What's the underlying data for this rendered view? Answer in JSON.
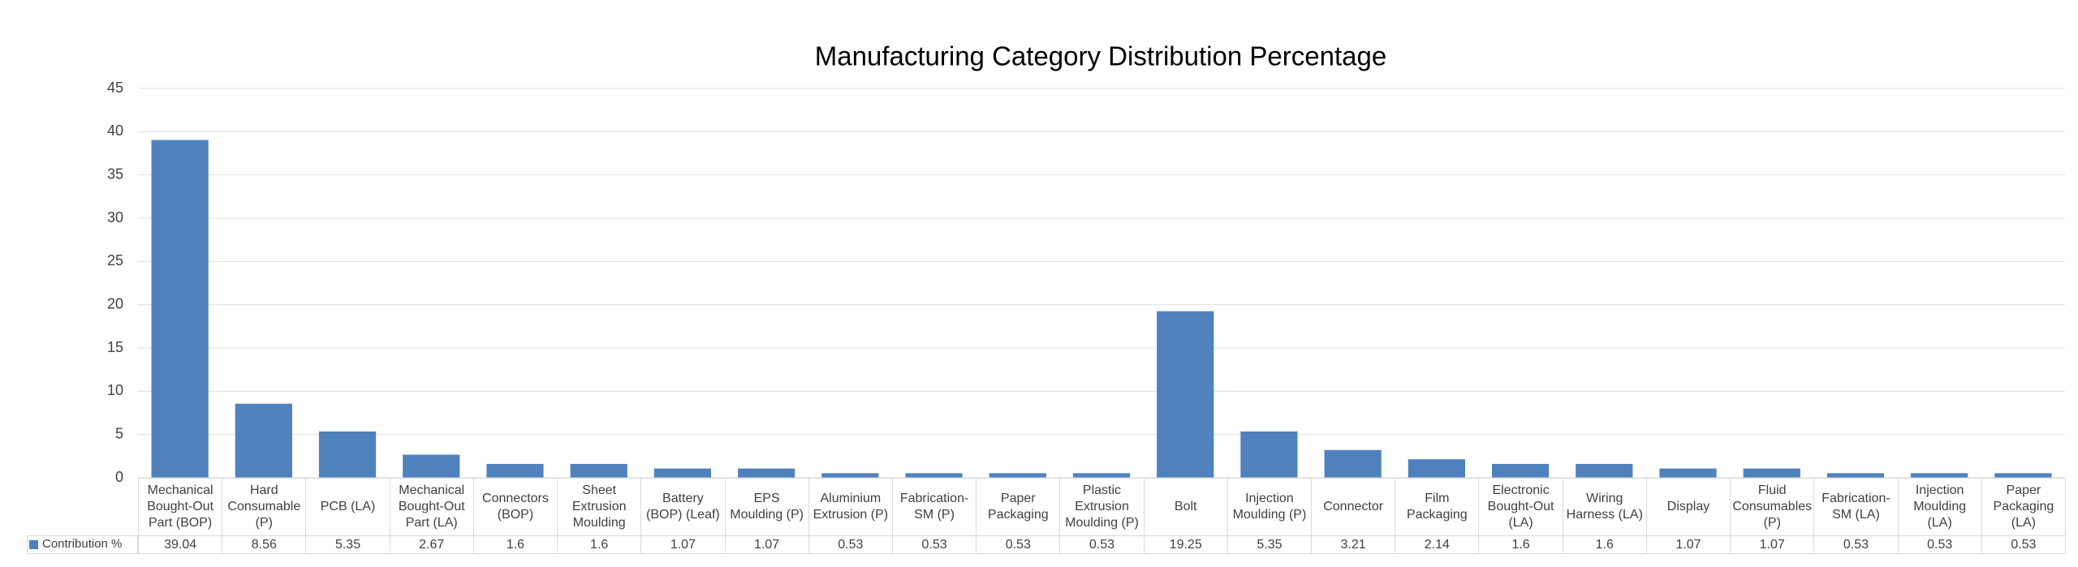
{
  "chart_data": {
    "type": "bar",
    "title": "Manufacturing Category Distribution Percentage",
    "categories": [
      "Mechanical Bought-Out Part (BOP)",
      "Hard Consumable (P)",
      "PCB (LA)",
      "Mechanical Bought-Out Part (LA)",
      "Connectors (BOP)",
      "Sheet Extrusion Moulding",
      "Battery (BOP) (Leaf)",
      "EPS Moulding (P)",
      "Aluminium Extrusion (P)",
      "Fabrication-SM (P)",
      "Paper Packaging",
      "Plastic Extrusion Moulding (P)",
      "Bolt",
      "Injection Moulding (P)",
      "Connector",
      "Film Packaging",
      "Electronic Bought-Out (LA)",
      "Wiring Harness (LA)",
      "Display",
      "Fluid Consumables (P)",
      "Fabrication-SM (LA)",
      "Injection Moulding (LA)",
      "Paper Packaging (LA)"
    ],
    "series": [
      {
        "name": "Contribution %",
        "color": "#4f81bd",
        "values": [
          39.04,
          8.56,
          5.35,
          2.67,
          1.6,
          1.6,
          1.07,
          1.07,
          0.53,
          0.53,
          0.53,
          0.53,
          19.25,
          5.35,
          3.21,
          2.14,
          1.6,
          1.6,
          1.07,
          1.07,
          0.53,
          0.53,
          0.53
        ]
      }
    ],
    "ylim": [
      0,
      45
    ],
    "yticks": [
      0,
      5,
      10,
      15,
      20,
      25,
      30,
      35,
      40,
      45
    ],
    "grid": true
  }
}
